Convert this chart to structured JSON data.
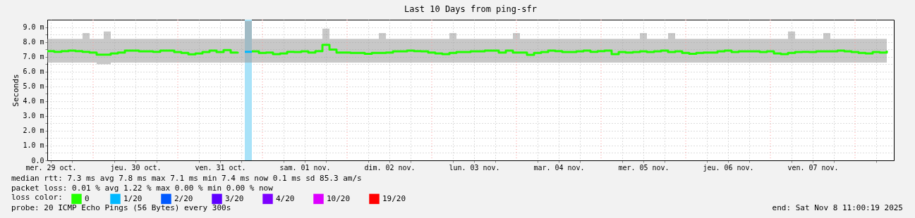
{
  "chart_data": {
    "type": "step",
    "title": "Last 10 Days from ping-sfr",
    "ylabel": "Seconds",
    "legend_title": "loss color:",
    "legend": "bottom left",
    "grid": true,
    "x": [
      "2025-10-29T11:00",
      "2025-10-29T13:00",
      "2025-10-29T15:00",
      "2025-10-29T17:00",
      "2025-10-29T19:00",
      "2025-10-29T21:00",
      "2025-10-29T23:00",
      "2025-10-30T01:00",
      "2025-10-30T03:00",
      "2025-10-30T05:00",
      "2025-10-30T07:00",
      "2025-10-30T09:00",
      "2025-10-30T11:00",
      "2025-10-30T13:00",
      "2025-10-30T15:00",
      "2025-10-30T17:00",
      "2025-10-30T19:00",
      "2025-10-30T21:00",
      "2025-10-30T23:00",
      "2025-10-31T01:00",
      "2025-10-31T03:00",
      "2025-10-31T05:00",
      "2025-10-31T07:00",
      "2025-10-31T09:00",
      "2025-10-31T11:00",
      "2025-10-31T13:00",
      "2025-10-31T15:00",
      "2025-10-31T17:00",
      "2025-10-31T19:00",
      "2025-10-31T21:00",
      "2025-10-31T23:00",
      "2025-11-01T01:00",
      "2025-11-01T03:00",
      "2025-11-01T05:00",
      "2025-11-01T07:00",
      "2025-11-01T09:00",
      "2025-11-01T11:00",
      "2025-11-01T13:00",
      "2025-11-01T15:00",
      "2025-11-01T17:00",
      "2025-11-01T19:00",
      "2025-11-01T21:00",
      "2025-11-01T23:00",
      "2025-11-02T01:00",
      "2025-11-02T03:00",
      "2025-11-02T05:00",
      "2025-11-02T07:00",
      "2025-11-02T09:00",
      "2025-11-02T11:00",
      "2025-11-02T13:00",
      "2025-11-02T15:00",
      "2025-11-02T17:00",
      "2025-11-02T19:00",
      "2025-11-02T21:00",
      "2025-11-02T23:00",
      "2025-11-03T01:00",
      "2025-11-03T03:00",
      "2025-11-03T05:00",
      "2025-11-03T07:00",
      "2025-11-03T09:00",
      "2025-11-03T11:00",
      "2025-11-03T13:00",
      "2025-11-03T15:00",
      "2025-11-03T17:00",
      "2025-11-03T19:00",
      "2025-11-03T21:00",
      "2025-11-03T23:00",
      "2025-11-04T01:00",
      "2025-11-04T03:00",
      "2025-11-04T05:00",
      "2025-11-04T07:00",
      "2025-11-04T09:00",
      "2025-11-04T11:00",
      "2025-11-04T13:00",
      "2025-11-04T15:00",
      "2025-11-04T17:00",
      "2025-11-04T19:00",
      "2025-11-04T21:00",
      "2025-11-04T23:00",
      "2025-11-05T01:00",
      "2025-11-05T03:00",
      "2025-11-05T05:00",
      "2025-11-05T07:00",
      "2025-11-05T09:00",
      "2025-11-05T11:00",
      "2025-11-05T13:00",
      "2025-11-05T15:00",
      "2025-11-05T17:00",
      "2025-11-05T19:00",
      "2025-11-05T21:00",
      "2025-11-05T23:00",
      "2025-11-06T01:00",
      "2025-11-06T03:00",
      "2025-11-06T05:00",
      "2025-11-06T07:00",
      "2025-11-06T09:00",
      "2025-11-06T11:00",
      "2025-11-06T13:00",
      "2025-11-06T15:00",
      "2025-11-06T17:00",
      "2025-11-06T19:00",
      "2025-11-06T21:00",
      "2025-11-06T23:00",
      "2025-11-07T01:00",
      "2025-11-07T03:00",
      "2025-11-07T05:00",
      "2025-11-07T07:00",
      "2025-11-07T09:00",
      "2025-11-07T11:00",
      "2025-11-07T13:00",
      "2025-11-07T15:00",
      "2025-11-07T17:00",
      "2025-11-07T19:00",
      "2025-11-07T21:00",
      "2025-11-07T23:00",
      "2025-11-08T01:00",
      "2025-11-08T03:00",
      "2025-11-08T05:00",
      "2025-11-08T07:00",
      "2025-11-08T09:00"
    ],
    "series": [
      {
        "name": "0",
        "color": "#22ff00",
        "values": [
          7.38,
          7.33,
          7.38,
          7.41,
          7.38,
          7.33,
          7.28,
          7.14,
          7.14,
          7.22,
          7.28,
          7.41,
          7.41,
          7.36,
          7.36,
          7.33,
          7.41,
          7.41,
          7.32,
          7.25,
          7.16,
          7.22,
          7.32,
          7.41,
          7.32,
          7.44,
          7.28,
          7.33,
          null,
          7.36,
          7.25,
          7.28,
          7.17,
          7.22,
          7.33,
          7.32,
          7.36,
          7.28,
          7.38,
          7.8,
          7.48,
          7.28,
          7.28,
          7.25,
          7.25,
          7.2,
          7.25,
          7.25,
          7.28,
          7.36,
          7.36,
          7.41,
          7.38,
          7.36,
          7.28,
          7.22,
          7.17,
          7.25,
          7.32,
          7.32,
          7.36,
          7.36,
          7.41,
          7.41,
          7.28,
          7.41,
          7.28,
          7.28,
          7.12,
          7.25,
          7.32,
          7.41,
          7.38,
          7.32,
          7.32,
          7.36,
          7.41,
          7.33,
          7.38,
          7.41,
          7.17,
          7.32,
          7.28,
          7.32,
          7.36,
          7.32,
          7.36,
          7.41,
          7.32,
          7.36,
          7.25,
          7.2,
          7.25,
          7.28,
          7.28,
          7.36,
          7.41,
          7.32,
          7.36,
          7.36,
          7.36,
          7.32,
          7.36,
          7.22,
          7.17,
          7.25,
          7.32,
          7.33,
          7.32,
          7.36,
          7.36,
          7.36,
          7.41,
          7.36,
          7.32,
          7.25,
          7.22,
          7.32,
          7.28,
          7.41
        ],
        "lower": [
          6.6,
          6.6,
          6.6,
          6.6,
          6.6,
          6.6,
          6.6,
          6.5,
          6.5,
          6.6,
          6.6,
          6.6,
          6.6,
          6.6,
          6.6,
          6.6,
          6.6,
          6.6,
          6.6,
          6.6,
          6.6,
          6.6,
          6.6,
          6.6,
          6.6,
          6.6,
          6.6,
          6.6,
          6.6,
          6.6,
          6.6,
          6.6,
          6.6,
          6.6,
          6.6,
          6.6,
          6.6,
          6.6,
          6.6,
          6.6,
          6.6,
          6.6,
          6.6,
          6.6,
          6.6,
          6.6,
          6.6,
          6.6,
          6.6,
          6.6,
          6.6,
          6.6,
          6.6,
          6.6,
          6.6,
          6.6,
          6.6,
          6.6,
          6.6,
          6.6,
          6.6,
          6.6,
          6.6,
          6.6,
          6.6,
          6.6,
          6.6,
          6.6,
          6.6,
          6.6,
          6.6,
          6.6,
          6.6,
          6.6,
          6.6,
          6.6,
          6.6,
          6.6,
          6.6,
          6.6,
          6.6,
          6.6,
          6.6,
          6.6,
          6.6,
          6.6,
          6.6,
          6.6,
          6.6,
          6.6,
          6.6,
          6.6,
          6.6,
          6.6,
          6.6,
          6.6,
          6.6,
          6.6,
          6.6,
          6.6,
          6.6,
          6.6,
          6.6,
          6.6,
          6.6,
          6.6,
          6.6,
          6.6,
          6.6,
          6.6,
          6.6,
          6.6,
          6.6,
          6.6,
          6.6,
          6.6,
          6.6,
          6.6,
          6.6,
          6.6
        ],
        "upper": [
          8.2,
          8.2,
          8.2,
          8.2,
          8.2,
          8.6,
          8.2,
          8.2,
          8.7,
          8.2,
          8.2,
          8.2,
          8.2,
          8.2,
          8.2,
          8.2,
          8.2,
          8.2,
          8.2,
          8.2,
          8.2,
          8.2,
          8.2,
          8.2,
          8.2,
          8.2,
          8.2,
          8.2,
          9.4,
          8.2,
          8.2,
          8.2,
          8.2,
          8.2,
          8.2,
          8.2,
          8.2,
          8.2,
          8.2,
          8.9,
          8.2,
          8.2,
          8.2,
          8.2,
          8.2,
          8.2,
          8.2,
          8.6,
          8.2,
          8.2,
          8.2,
          8.2,
          8.2,
          8.2,
          8.2,
          8.2,
          8.2,
          8.6,
          8.2,
          8.2,
          8.2,
          8.2,
          8.2,
          8.2,
          8.2,
          8.2,
          8.6,
          8.2,
          8.2,
          8.2,
          8.2,
          8.2,
          8.2,
          8.2,
          8.2,
          8.2,
          8.2,
          8.2,
          8.2,
          8.2,
          8.2,
          8.2,
          8.2,
          8.2,
          8.6,
          8.2,
          8.2,
          8.2,
          8.6,
          8.2,
          8.2,
          8.2,
          8.2,
          8.2,
          8.2,
          8.2,
          8.2,
          8.2,
          8.2,
          8.2,
          8.2,
          8.2,
          8.2,
          8.2,
          8.2,
          8.7,
          8.2,
          8.2,
          8.2,
          8.2,
          8.6,
          8.2,
          8.2,
          8.2,
          8.2,
          8.2,
          8.2,
          8.2,
          8.2,
          8.2
        ]
      },
      {
        "name": "1/20",
        "color": "#00b8ff",
        "x": [
          "2025-10-31T19:00",
          "2025-10-31T21:00"
        ],
        "values": [
          7.33,
          7.33
        ]
      },
      {
        "name": "2/20",
        "color": "#0059ff",
        "values": [
          null,
          null,
          null,
          null,
          null,
          null,
          null,
          null,
          null,
          null,
          null,
          null,
          null,
          null,
          null,
          null,
          null,
          null,
          null,
          null,
          null,
          null,
          null,
          null,
          null,
          null,
          null,
          null,
          null,
          null,
          null,
          null,
          null,
          null,
          null,
          null,
          null,
          null,
          null,
          null,
          null,
          null,
          null,
          null,
          null,
          null,
          null,
          null,
          null,
          null,
          null,
          null,
          null,
          null,
          null,
          null,
          null,
          null,
          null,
          null,
          null,
          null,
          null,
          null,
          null,
          null,
          null,
          null,
          null,
          null,
          null,
          null,
          null,
          null,
          null,
          null,
          null,
          null,
          null,
          null,
          null,
          null,
          null,
          null,
          null,
          null,
          null,
          null,
          null,
          null,
          null,
          null,
          null,
          null,
          null,
          null,
          null,
          null,
          null,
          null,
          null,
          null,
          null,
          null,
          null,
          null,
          null,
          null,
          null,
          null,
          null,
          null,
          null,
          null,
          null,
          null,
          null,
          null,
          null,
          null
        ]
      },
      {
        "name": "3/20",
        "color": "#5e00ff",
        "values": [
          null,
          null,
          null,
          null,
          null,
          null,
          null,
          null,
          null,
          null,
          null,
          null,
          null,
          null,
          null,
          null,
          null,
          null,
          null,
          null,
          null,
          null,
          null,
          null,
          null,
          null,
          null,
          null,
          null,
          null,
          null,
          null,
          null,
          null,
          null,
          null,
          null,
          null,
          null,
          null,
          null,
          null,
          null,
          null,
          null,
          null,
          null,
          null,
          null,
          null,
          null,
          null,
          null,
          null,
          null,
          null,
          null,
          null,
          null,
          null,
          null,
          null,
          null,
          null,
          null,
          null,
          null,
          null,
          null,
          null,
          null,
          null,
          null,
          null,
          null,
          null,
          null,
          null,
          null,
          null,
          null,
          null,
          null,
          null,
          null,
          null,
          null,
          null,
          null,
          null,
          null,
          null,
          null,
          null,
          null,
          null,
          null,
          null,
          null,
          null,
          null,
          null,
          null,
          null,
          null,
          null,
          null,
          null,
          null,
          null,
          null,
          null,
          null,
          null,
          null,
          null,
          null,
          null,
          null,
          null
        ]
      },
      {
        "name": "4/20",
        "color": "#7e00ff",
        "values": [
          null,
          null,
          null,
          null,
          null,
          null,
          null,
          null,
          null,
          null,
          null,
          null,
          null,
          null,
          null,
          null,
          null,
          null,
          null,
          null,
          null,
          null,
          null,
          null,
          null,
          null,
          null,
          null,
          null,
          null,
          null,
          null,
          null,
          null,
          null,
          null,
          null,
          null,
          null,
          null,
          null,
          null,
          null,
          null,
          null,
          null,
          null,
          null,
          null,
          null,
          null,
          null,
          null,
          null,
          null,
          null,
          null,
          null,
          null,
          null,
          null,
          null,
          null,
          null,
          null,
          null,
          null,
          null,
          null,
          null,
          null,
          null,
          null,
          null,
          null,
          null,
          null,
          null,
          null,
          null,
          null,
          null,
          null,
          null,
          null,
          null,
          null,
          null,
          null,
          null,
          null,
          null,
          null,
          null,
          null,
          null,
          null,
          null,
          null,
          null,
          null,
          null,
          null,
          null,
          null,
          null,
          null,
          null,
          null,
          null,
          null,
          null,
          null,
          null,
          null,
          null,
          null,
          null,
          null,
          null
        ]
      },
      {
        "name": "10/20",
        "color": "#dd00ff",
        "values": [
          null,
          null,
          null,
          null,
          null,
          null,
          null,
          null,
          null,
          null,
          null,
          null,
          null,
          null,
          null,
          null,
          null,
          null,
          null,
          null,
          null,
          null,
          null,
          null,
          null,
          null,
          null,
          null,
          null,
          null,
          null,
          null,
          null,
          null,
          null,
          null,
          null,
          null,
          null,
          null,
          null,
          null,
          null,
          null,
          null,
          null,
          null,
          null,
          null,
          null,
          null,
          null,
          null,
          null,
          null,
          null,
          null,
          null,
          null,
          null,
          null,
          null,
          null,
          null,
          null,
          null,
          null,
          null,
          null,
          null,
          null,
          null,
          null,
          null,
          null,
          null,
          null,
          null,
          null,
          null,
          null,
          null,
          null,
          null,
          null,
          null,
          null,
          null,
          null,
          null,
          null,
          null,
          null,
          null,
          null,
          null,
          null,
          null,
          null,
          null,
          null,
          null,
          null,
          null,
          null,
          null,
          null,
          null,
          null,
          null,
          null,
          null,
          null,
          null,
          null,
          null,
          null,
          null,
          null,
          null
        ]
      },
      {
        "name": "19/20",
        "color": "#ff0000",
        "values": [
          null,
          null,
          null,
          null,
          null,
          null,
          null,
          null,
          null,
          null,
          null,
          null,
          null,
          null,
          null,
          null,
          null,
          null,
          null,
          null,
          null,
          null,
          null,
          null,
          null,
          null,
          null,
          null,
          null,
          null,
          null,
          null,
          null,
          null,
          null,
          null,
          null,
          null,
          null,
          null,
          null,
          null,
          null,
          null,
          null,
          null,
          null,
          null,
          null,
          null,
          null,
          null,
          null,
          null,
          null,
          null,
          null,
          null,
          null,
          null,
          null,
          null,
          null,
          null,
          null,
          null,
          null,
          null,
          null,
          null,
          null,
          null,
          null,
          null,
          null,
          null,
          null,
          null,
          null,
          null,
          null,
          null,
          null,
          null,
          null,
          null,
          null,
          null,
          null,
          null,
          null,
          null,
          null,
          null,
          null,
          null,
          null,
          null,
          null,
          null,
          null,
          null,
          null,
          null,
          null,
          null,
          null,
          null,
          null,
          null,
          null,
          null,
          null,
          null,
          null,
          null,
          null,
          null,
          null,
          null
        ]
      }
    ],
    "xlim": [
      "2025-10-29T11:00",
      "2025-11-08T11:00"
    ],
    "xticks": [
      {
        "value": "2025-10-29T12:00",
        "label": "mer. 29 oct."
      },
      {
        "value": "2025-10-29T18:00",
        "label": null
      },
      {
        "value": "2025-10-30T06:00",
        "label": null
      },
      {
        "value": "2025-10-30T12:00",
        "label": "jeu. 30 oct."
      },
      {
        "value": "2025-10-30T18:00",
        "label": null
      },
      {
        "value": "2025-10-31T06:00",
        "label": null
      },
      {
        "value": "2025-10-31T12:00",
        "label": "ven. 31 oct."
      },
      {
        "value": "2025-10-31T18:00",
        "label": null
      },
      {
        "value": "2025-11-01T06:00",
        "label": null
      },
      {
        "value": "2025-11-01T12:00",
        "label": "sam. 01 nov."
      },
      {
        "value": "2025-11-01T18:00",
        "label": null
      },
      {
        "value": "2025-11-02T06:00",
        "label": null
      },
      {
        "value": "2025-11-02T12:00",
        "label": "dim. 02 nov."
      },
      {
        "value": "2025-11-02T18:00",
        "label": null
      },
      {
        "value": "2025-11-03T06:00",
        "label": null
      },
      {
        "value": "2025-11-03T12:00",
        "label": "lun. 03 nov."
      },
      {
        "value": "2025-11-03T18:00",
        "label": null
      },
      {
        "value": "2025-11-04T06:00",
        "label": null
      },
      {
        "value": "2025-11-04T12:00",
        "label": "mar. 04 nov."
      },
      {
        "value": "2025-11-04T18:00",
        "label": null
      },
      {
        "value": "2025-11-05T06:00",
        "label": null
      },
      {
        "value": "2025-11-05T12:00",
        "label": "mer. 05 nov."
      },
      {
        "value": "2025-11-05T18:00",
        "label": null
      },
      {
        "value": "2025-11-06T06:00",
        "label": null
      },
      {
        "value": "2025-11-06T12:00",
        "label": "jeu. 06 nov."
      },
      {
        "value": "2025-11-06T18:00",
        "label": null
      },
      {
        "value": "2025-11-07T06:00",
        "label": null
      },
      {
        "value": "2025-11-07T12:00",
        "label": "ven. 07 nov."
      },
      {
        "value": "2025-11-07T18:00",
        "label": null
      },
      {
        "value": "2025-11-08T06:00",
        "label": null
      }
    ],
    "ylim": [
      0,
      9.5
    ],
    "yticks": [
      {
        "value": 0,
        "label": "0.0"
      },
      {
        "value": 0.5,
        "label": null
      },
      {
        "value": 1,
        "label": "1.0 m"
      },
      {
        "value": 1.5,
        "label": null
      },
      {
        "value": 2,
        "label": "2.0 m"
      },
      {
        "value": 2.5,
        "label": null
      },
      {
        "value": 3,
        "label": "3.0 m"
      },
      {
        "value": 3.5,
        "label": null
      },
      {
        "value": 4,
        "label": "4.0 m"
      },
      {
        "value": 4.5,
        "label": null
      },
      {
        "value": 5,
        "label": "5.0 m"
      },
      {
        "value": 5.5,
        "label": null
      },
      {
        "value": 6,
        "label": "6.0 m"
      },
      {
        "value": 6.5,
        "label": null
      },
      {
        "value": 7,
        "label": "7.0 m"
      },
      {
        "value": 7.5,
        "label": null
      },
      {
        "value": 8,
        "label": "8.0 m"
      },
      {
        "value": 8.5,
        "label": null
      },
      {
        "value": 9,
        "label": "9.0 m"
      }
    ],
    "ref_lines": [
      {
        "axis": "x",
        "value": "2025-10-30T00:00",
        "color": "#ff9999",
        "line_style": "dotted"
      },
      {
        "axis": "x",
        "value": "2025-10-31T00:00",
        "color": "#ff9999",
        "line_style": "dotted"
      },
      {
        "axis": "x",
        "value": "2025-11-01T00:00",
        "color": "#ff9999",
        "line_style": "dotted"
      },
      {
        "axis": "x",
        "value": "2025-11-02T00:00",
        "color": "#ff9999",
        "line_style": "dotted"
      },
      {
        "axis": "x",
        "value": "2025-11-03T00:00",
        "color": "#ff9999",
        "line_style": "dotted"
      },
      {
        "axis": "x",
        "value": "2025-11-04T00:00",
        "color": "#ff9999",
        "line_style": "dotted"
      },
      {
        "axis": "x",
        "value": "2025-11-05T00:00",
        "color": "#ff9999",
        "line_style": "dotted"
      },
      {
        "axis": "x",
        "value": "2025-11-06T00:00",
        "color": "#ff9999",
        "line_style": "dotted"
      },
      {
        "axis": "x",
        "value": "2025-11-07T00:00",
        "color": "#ff9999",
        "line_style": "dotted"
      },
      {
        "axis": "x",
        "value": "2025-11-08T00:00",
        "color": "#ff9999",
        "line_style": "dotted"
      }
    ],
    "bands": [
      {
        "axis": "x",
        "from": "2025-10-31T19:00",
        "to": "2025-10-31T21:00",
        "color": "#a8e2f8"
      }
    ],
    "annotations": [
      "median rtt:  7.3 ms avg  7.8 ms max  7.1 ms min  7.4 ms now  0.1 ms sd  85.3   am/s",
      "packet loss: 0.01 % avg  1.22 % max  0.00 % min  0.00 % now",
      "probe:       20 ICMP Echo Pings (56 Bytes) every 300s",
      "end: Sat Nov  8 11:00:19 2025"
    ]
  }
}
